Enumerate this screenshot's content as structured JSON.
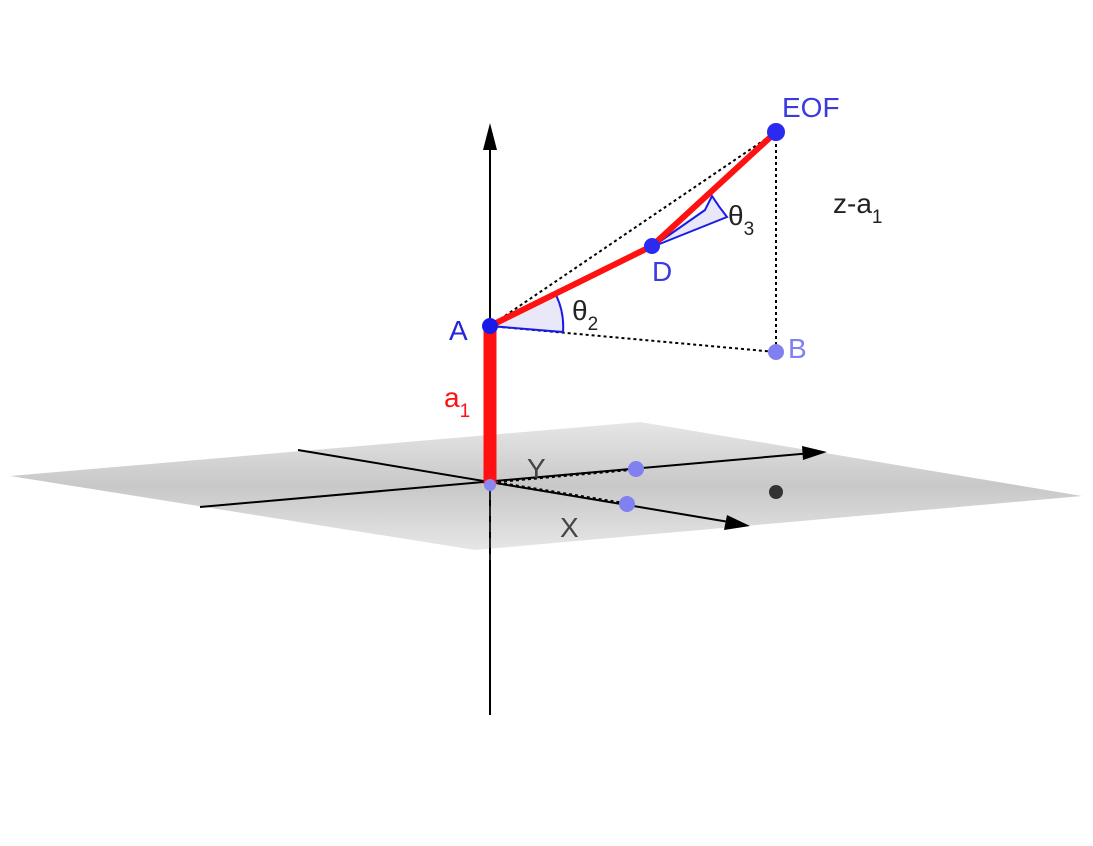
{
  "colors": {
    "arm": "#ff1111",
    "point": "#1a1ae8",
    "point_light": "#7f7ff0",
    "point_origin_ghost": "#8888ee",
    "angle_stroke": "#1a1ae8",
    "angle_fill": "#e8e8f8",
    "plane": "#c8c8c8",
    "axis": "#000000",
    "label_dark": "#333333",
    "label_blue": "#3a3ae0"
  },
  "labels": {
    "A": "A",
    "B": "B",
    "D": "D",
    "EOF": "EOF",
    "X": "X",
    "Y": "Y",
    "a1_base": "a",
    "a1_sub": "1",
    "theta2_base": "θ",
    "theta2_sub": "2",
    "theta3_base": "θ",
    "theta3_sub": "3",
    "z_base": "z-a",
    "z_sub": "1"
  },
  "icons": {
    "point": "filled-circle",
    "axis_head": "arrowhead"
  }
}
